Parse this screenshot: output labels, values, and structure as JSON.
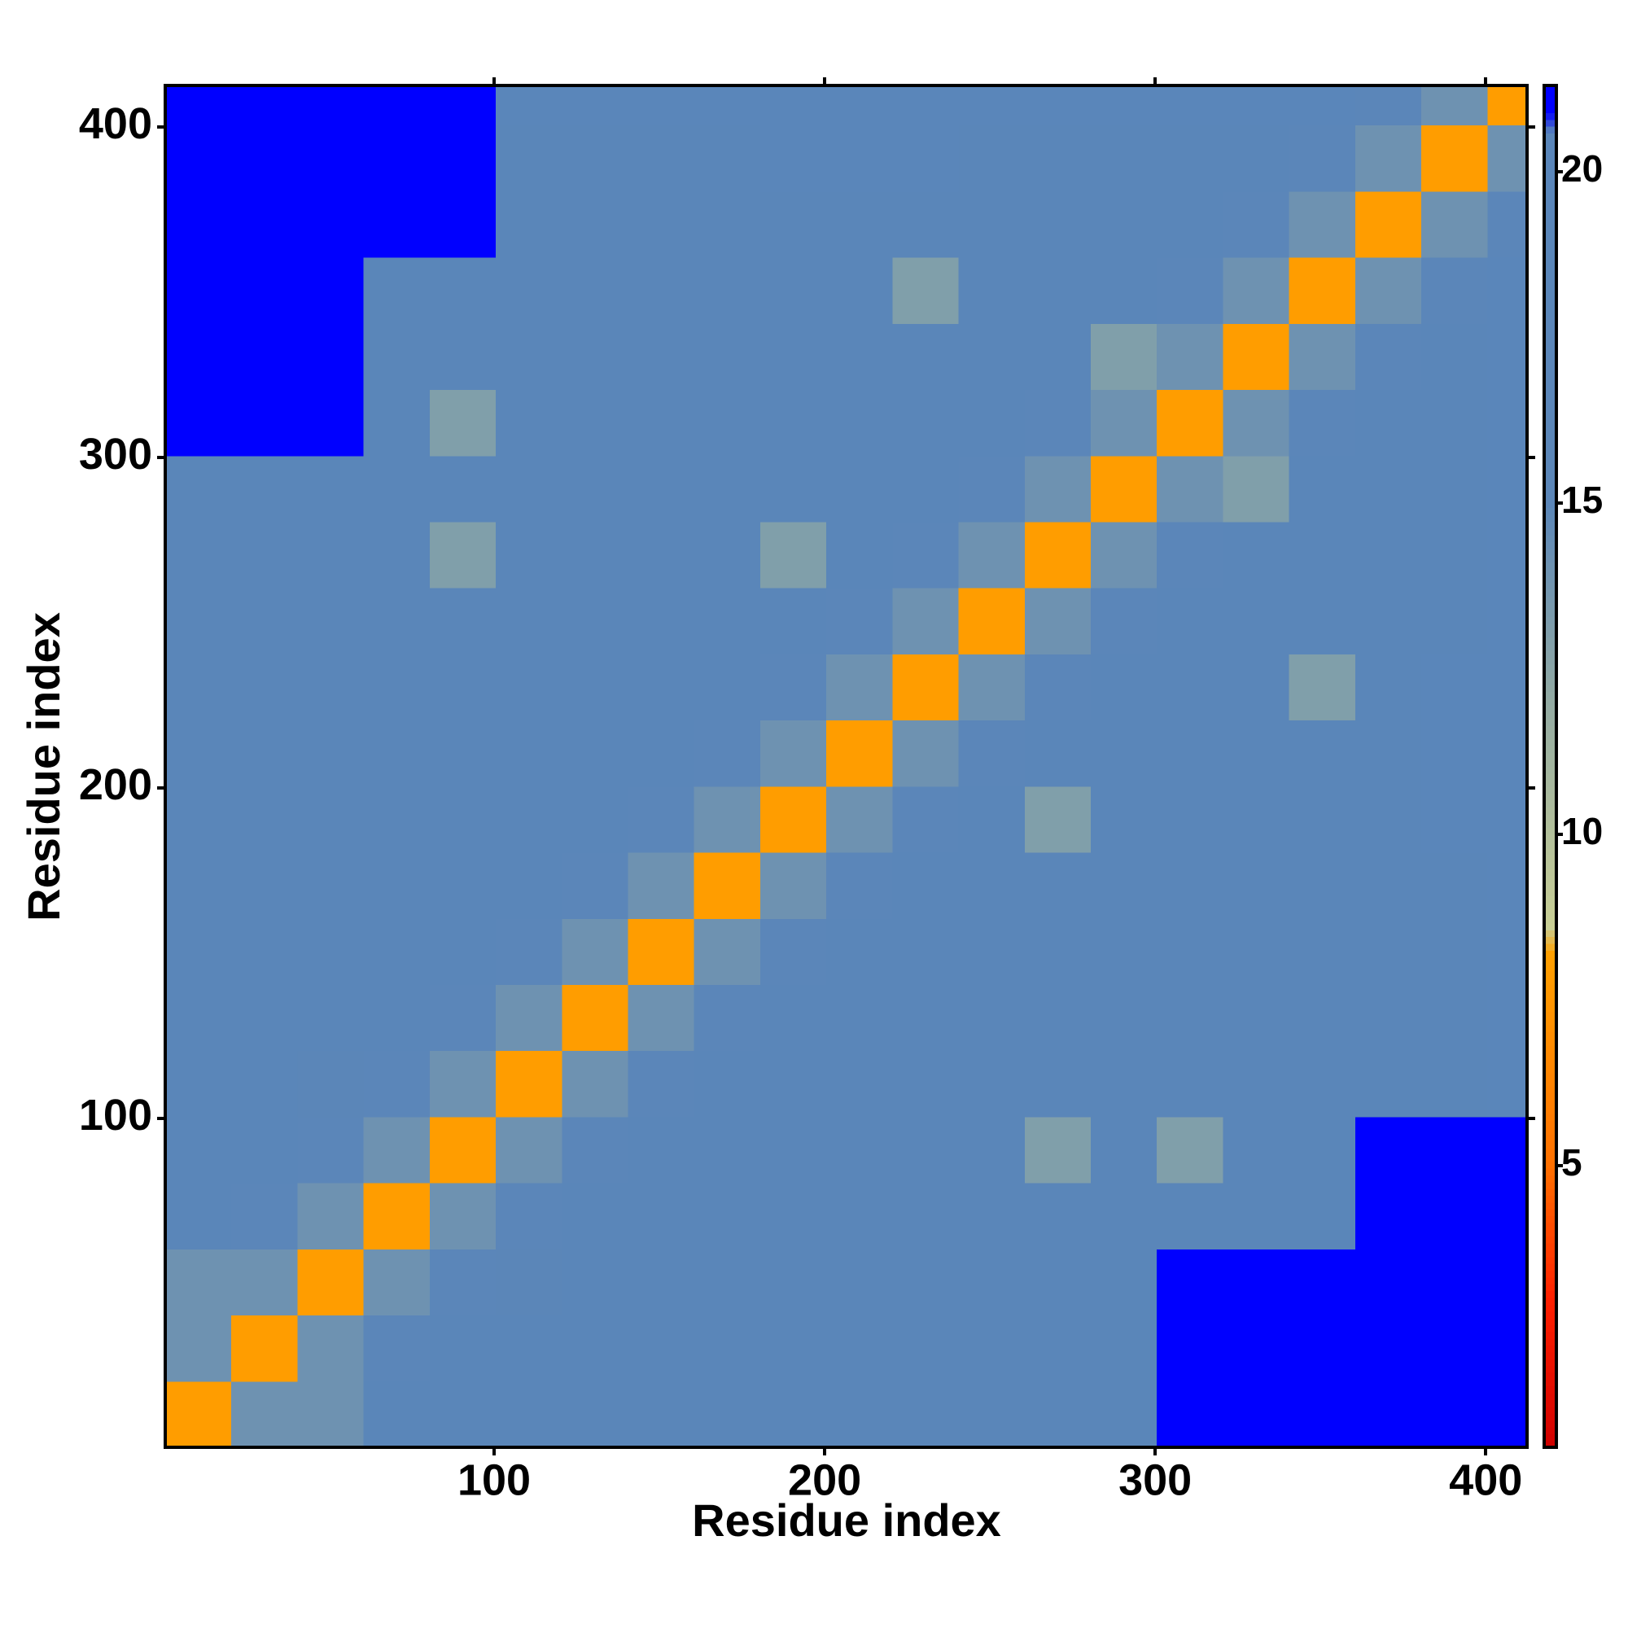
{
  "chart_data": {
    "type": "heatmap",
    "x_label": "Residue index",
    "y_label": "Residue index",
    "xlim": [
      0.5,
      412.5
    ],
    "ylim": [
      0.5,
      412.5
    ],
    "xticks": [
      100,
      200,
      300,
      400
    ],
    "yticks": [
      100,
      200,
      300,
      400
    ],
    "x_bins": [
      0.5,
      20.5,
      40.5,
      60.5,
      80.5,
      100.5,
      120.5,
      140.5,
      160.5,
      180.5,
      200.5,
      220.5,
      240.5,
      260.5,
      280.5,
      300.5,
      320.5,
      340.5,
      360.5,
      380.5,
      400.5,
      412.5
    ],
    "y_bins": [
      0.5,
      20.5,
      40.5,
      60.5,
      80.5,
      100.5,
      120.5,
      140.5,
      160.5,
      180.5,
      200.5,
      220.5,
      240.5,
      260.5,
      280.5,
      300.5,
      320.5,
      340.5,
      360.5,
      380.5,
      400.5,
      412.5
    ],
    "z": [
      [
        8,
        14,
        14,
        18,
        18,
        18,
        18,
        18,
        18,
        18,
        18,
        18,
        18,
        18,
        18,
        21,
        21,
        21,
        21,
        21,
        21
      ],
      [
        14,
        8,
        14,
        17,
        18,
        18,
        18,
        18,
        18,
        18,
        18,
        18,
        18,
        18,
        18,
        21,
        21,
        21,
        21,
        21,
        21
      ],
      [
        14,
        14,
        8,
        14,
        17,
        15,
        18,
        18,
        18,
        18,
        18,
        18,
        18,
        18,
        18,
        21,
        21,
        21,
        21,
        21,
        21
      ],
      [
        18,
        17,
        14,
        8,
        14,
        17,
        18,
        18,
        18,
        18,
        18,
        18,
        18,
        18,
        18,
        18,
        18,
        18,
        21,
        21,
        21
      ],
      [
        18,
        18,
        17,
        14,
        8,
        14,
        17,
        18,
        18,
        18,
        18,
        18,
        18,
        13,
        18,
        13,
        18,
        18,
        21,
        21,
        21
      ],
      [
        18,
        18,
        15,
        17,
        14,
        8,
        14,
        17,
        18,
        18,
        18,
        18,
        18,
        18,
        18,
        18,
        18,
        18,
        18,
        18,
        20
      ],
      [
        18,
        18,
        18,
        18,
        17,
        14,
        8,
        14,
        17,
        18,
        18,
        18,
        18,
        18,
        18,
        18,
        18,
        18,
        18,
        18,
        20
      ],
      [
        18,
        18,
        18,
        18,
        18,
        17,
        14,
        8,
        14,
        17,
        18,
        18,
        18,
        18,
        18,
        18,
        18,
        18,
        18,
        18,
        20
      ],
      [
        18,
        18,
        18,
        18,
        18,
        18,
        17,
        14,
        8,
        14,
        17,
        18,
        18,
        18,
        18,
        18,
        18,
        18,
        18,
        18,
        20
      ],
      [
        18,
        18,
        18,
        18,
        18,
        18,
        18,
        17,
        14,
        8,
        14,
        17,
        18,
        13,
        18,
        18,
        18,
        18,
        18,
        20,
        20
      ],
      [
        18,
        18,
        18,
        18,
        18,
        18,
        18,
        18,
        17,
        14,
        8,
        14,
        17,
        18,
        18,
        18,
        18,
        18,
        18,
        20,
        20
      ],
      [
        18,
        18,
        18,
        18,
        18,
        18,
        18,
        18,
        18,
        17,
        14,
        8,
        14,
        17,
        18,
        18,
        18,
        13,
        18,
        20,
        20
      ],
      [
        18,
        18,
        18,
        18,
        18,
        18,
        18,
        18,
        18,
        18,
        17,
        14,
        8,
        14,
        17,
        18,
        18,
        18,
        18,
        18,
        20
      ],
      [
        18,
        18,
        18,
        18,
        13,
        18,
        18,
        18,
        18,
        13,
        18,
        17,
        14,
        8,
        14,
        17,
        18,
        18,
        18,
        18,
        20
      ],
      [
        18,
        18,
        18,
        18,
        18,
        18,
        18,
        18,
        18,
        18,
        18,
        18,
        17,
        14,
        8,
        14,
        13,
        18,
        18,
        18,
        20
      ],
      [
        21,
        21,
        21,
        18,
        13,
        18,
        18,
        18,
        18,
        18,
        18,
        18,
        18,
        17,
        14,
        8,
        14,
        17,
        18,
        18,
        20
      ],
      [
        21,
        21,
        21,
        18,
        18,
        18,
        18,
        18,
        18,
        18,
        18,
        18,
        18,
        18,
        13,
        14,
        8,
        14,
        17,
        18,
        20
      ],
      [
        21,
        21,
        21,
        18,
        18,
        18,
        18,
        18,
        18,
        18,
        18,
        13,
        18,
        18,
        18,
        17,
        14,
        8,
        14,
        17,
        20
      ],
      [
        21,
        21,
        21,
        21,
        21,
        18,
        18,
        18,
        18,
        18,
        18,
        18,
        18,
        18,
        18,
        18,
        17,
        14,
        8,
        14,
        17
      ],
      [
        21,
        21,
        21,
        21,
        21,
        18,
        18,
        18,
        18,
        20,
        20,
        20,
        18,
        18,
        18,
        18,
        18,
        17,
        14,
        8,
        14
      ],
      [
        21,
        21,
        21,
        21,
        21,
        20,
        20,
        20,
        20,
        20,
        20,
        20,
        20,
        20,
        20,
        20,
        20,
        20,
        17,
        14,
        8
      ]
    ],
    "zlim": [
      0.75,
      21.3
    ],
    "colorbar_ticks": [
      5,
      10,
      15,
      20
    ],
    "colorscale": [
      [
        0.75,
        "#d00000"
      ],
      [
        3,
        "#ff2000"
      ],
      [
        5,
        "#ff7000"
      ],
      [
        8.2,
        "#ffa000"
      ],
      [
        8.6,
        "#c9cf95"
      ],
      [
        12,
        "#93aba3"
      ],
      [
        15,
        "#5b86b8"
      ],
      [
        20.6,
        "#5a86ba"
      ],
      [
        20.9,
        "#0000ff"
      ]
    ]
  }
}
